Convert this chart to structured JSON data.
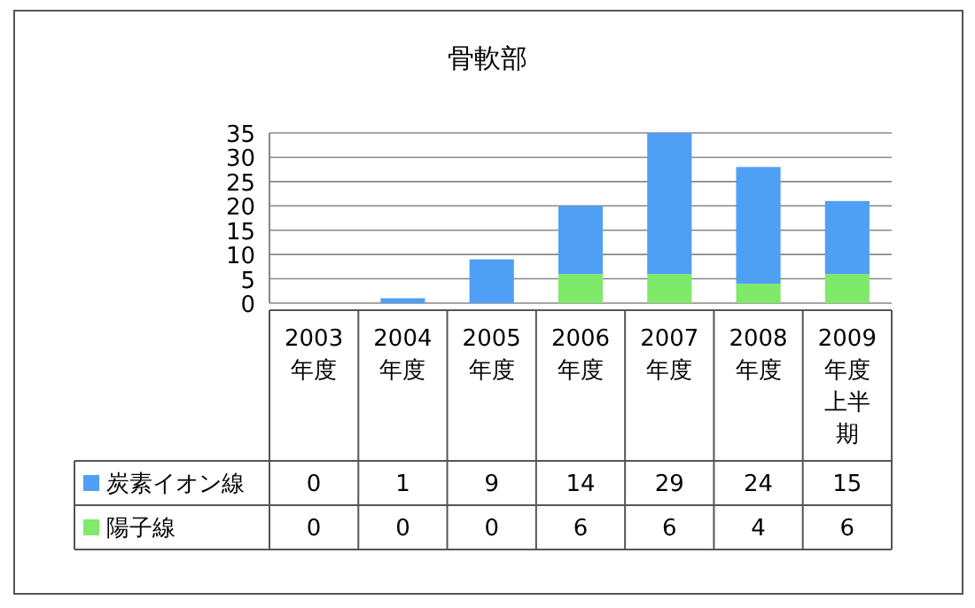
{
  "chart_data": {
    "type": "bar",
    "title": "骨軟部",
    "stacked": true,
    "categories": [
      "2003年度",
      "2004年度",
      "2005年度",
      "2006年度",
      "2007年度",
      "2008年度",
      "2009年度上半期"
    ],
    "series": [
      {
        "name": "陽子線",
        "color": "#7fea6a",
        "values": [
          0,
          0,
          0,
          6,
          6,
          4,
          6
        ]
      },
      {
        "name": "炭素イオン線",
        "color": "#4f9ff5",
        "values": [
          0,
          1,
          9,
          14,
          29,
          24,
          15
        ]
      }
    ],
    "ylim": [
      0,
      35
    ],
    "yticks": [
      0,
      5,
      10,
      15,
      20,
      25,
      30,
      35
    ],
    "grid": "y",
    "data_labels": true,
    "legend": "bottom"
  }
}
